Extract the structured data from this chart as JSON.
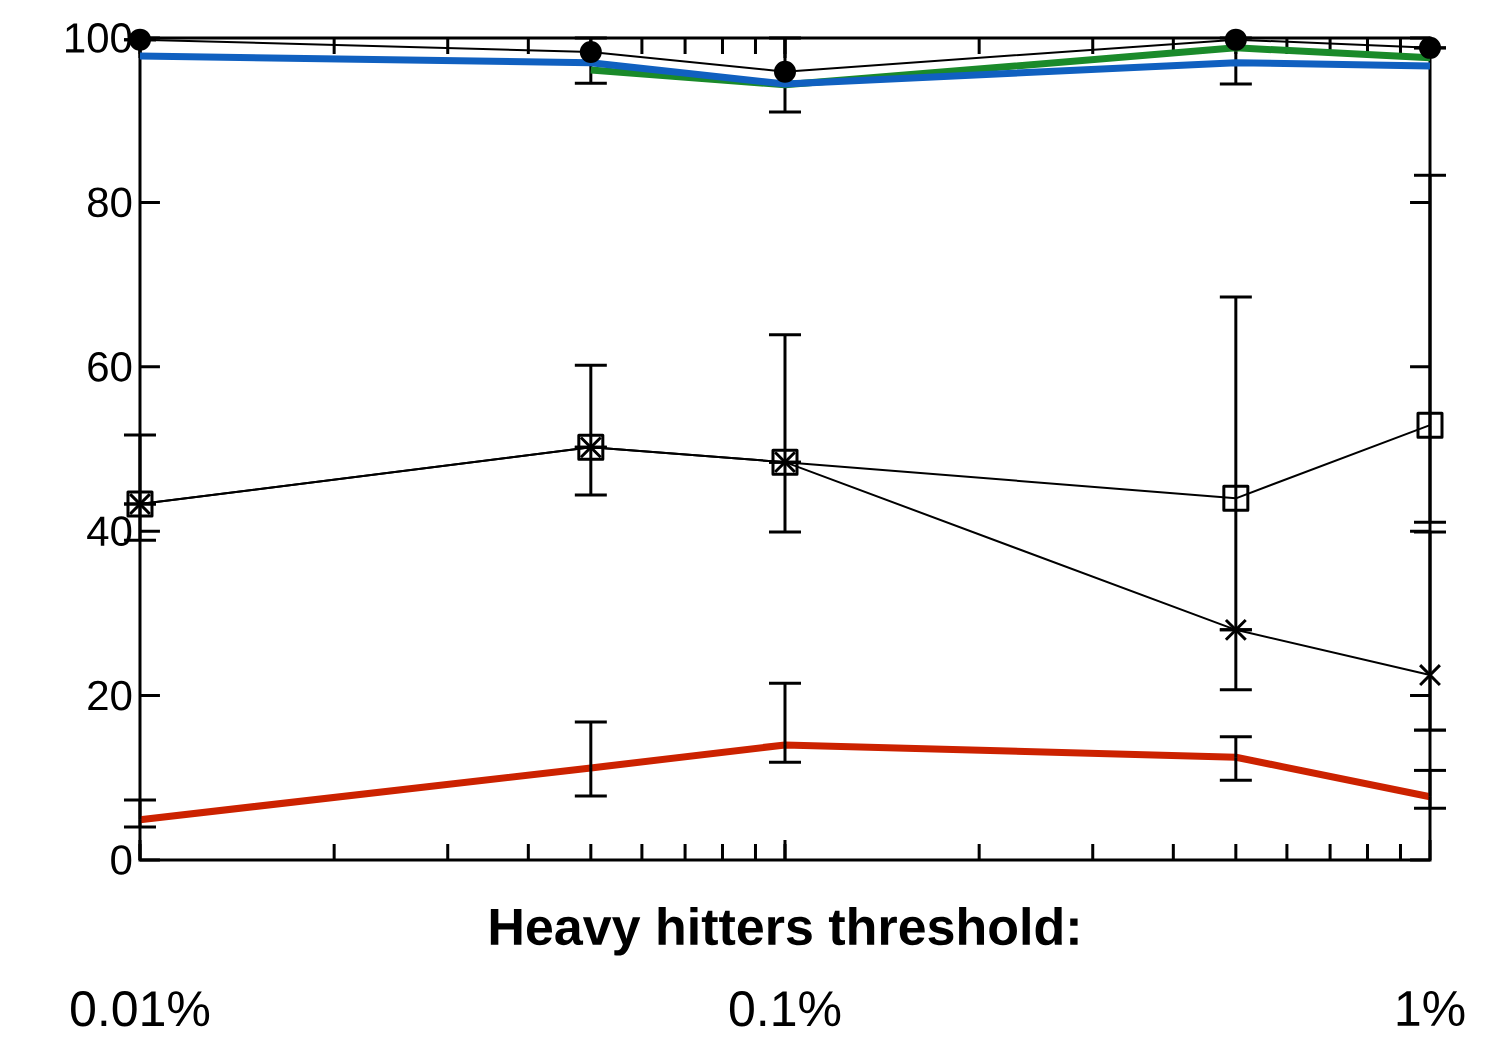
{
  "chart_data": {
    "type": "line",
    "xlabel": "Heavy hitters threshold:",
    "x": [
      0.01,
      0.05,
      0.1,
      0.5,
      1
    ],
    "log": "x",
    "xlim": [
      0.01,
      1
    ],
    "xticks": [
      {
        "value": 0.01,
        "label": "0.01%"
      },
      {
        "value": 0.1,
        "label": "0.1%"
      },
      {
        "value": 1,
        "label": "1%"
      }
    ],
    "ylim": [
      0,
      100
    ],
    "yticks": [
      0,
      20,
      40,
      60,
      80,
      100
    ],
    "grid": false,
    "series": [
      {
        "color": "#000000",
        "marker": "circle",
        "values": [
          99.8,
          98.3,
          95.9,
          99.8,
          98.8
        ],
        "errors": [
          null,
          [
            94.5,
            100
          ],
          [
            91,
            100
          ],
          [
            94.4,
            100
          ],
          null
        ]
      },
      {
        "color": "#1a8a2a",
        "marker": "none",
        "values": [
          null,
          96.1,
          94.3,
          98.8,
          97.6
        ]
      },
      {
        "color": "#1060c0",
        "marker": "none",
        "values": [
          97.8,
          97.0,
          94.4,
          97.0,
          96.6
        ]
      },
      {
        "color": "#000000",
        "marker": "square",
        "values": [
          43.3,
          50.2,
          48.4,
          44.0,
          52.9
        ],
        "errors": [
          [
            38.9,
            51.7
          ],
          [
            44.4,
            60.2
          ],
          [
            39.9,
            63.9
          ],
          [
            20.7,
            68.5
          ],
          [
            41.1,
            83.3
          ]
        ]
      },
      {
        "color": "#000000",
        "marker": "cross",
        "values": [
          43.3,
          50.2,
          48.4,
          28.0,
          22.5
        ],
        "errors": [
          null,
          null,
          null,
          null,
          [
            15.8,
            39.9
          ]
        ]
      },
      {
        "color": "#cc2200",
        "marker": "none",
        "values": [
          4.9,
          11.2,
          14.0,
          12.5,
          7.7
        ],
        "errors": [
          [
            4.0,
            7.3
          ],
          [
            7.8,
            16.8
          ],
          [
            11.9,
            21.5
          ],
          [
            9.7,
            15.0
          ],
          [
            6.3,
            10.9
          ]
        ]
      }
    ]
  }
}
